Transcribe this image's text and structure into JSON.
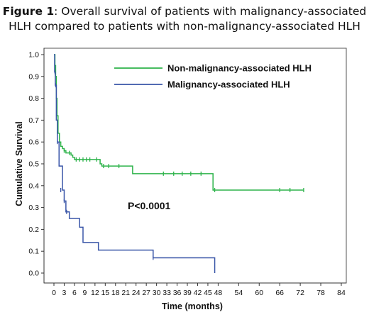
{
  "caption": {
    "label": "Figure 1",
    "text": ": Overall survival of patients with malignancy-associated HLH compared to patients with non-malignancy-associated HLH"
  },
  "chart_data": {
    "type": "line",
    "step": true,
    "xlabel": "Time (months)",
    "ylabel": "Cumulative Survival",
    "xlim": [
      -2,
      85
    ],
    "ylim": [
      -0.05,
      1.05
    ],
    "xticks": [
      0,
      3,
      6,
      9,
      12,
      15,
      18,
      21,
      24,
      27,
      30,
      33,
      36,
      39,
      42,
      45,
      48,
      54,
      60,
      66,
      72,
      78,
      84
    ],
    "yticks": [
      0.0,
      0.1,
      0.2,
      0.3,
      0.4,
      0.5,
      0.6,
      0.7,
      0.8,
      0.9,
      1.0
    ],
    "annotation": "P<0.0001",
    "legend_position": "top-center",
    "series": [
      {
        "name": "Non-malignancy-associated HLH",
        "color": "#2db34a",
        "steps": [
          [
            0,
            1.0
          ],
          [
            0.3,
            0.95
          ],
          [
            0.5,
            0.9
          ],
          [
            0.7,
            0.8
          ],
          [
            0.9,
            0.72
          ],
          [
            1.2,
            0.64
          ],
          [
            1.6,
            0.6
          ],
          [
            2.0,
            0.58
          ],
          [
            2.5,
            0.57
          ],
          [
            3.0,
            0.56
          ],
          [
            3.5,
            0.55
          ],
          [
            4.5,
            0.55
          ],
          [
            5.0,
            0.54
          ],
          [
            5.5,
            0.53
          ],
          [
            6.0,
            0.52
          ],
          [
            13.5,
            0.5
          ],
          [
            14.0,
            0.49
          ],
          [
            18.0,
            0.49
          ],
          [
            23.0,
            0.455
          ],
          [
            46.5,
            0.38
          ],
          [
            73.0,
            0.38
          ]
        ],
        "censored": [
          [
            1.0,
            0.64
          ],
          [
            3.0,
            0.56
          ],
          [
            4.5,
            0.55
          ],
          [
            6.5,
            0.52
          ],
          [
            7.5,
            0.52
          ],
          [
            8.5,
            0.52
          ],
          [
            9.5,
            0.52
          ],
          [
            10.5,
            0.52
          ],
          [
            12.5,
            0.52
          ],
          [
            14.5,
            0.49
          ],
          [
            16.0,
            0.49
          ],
          [
            19.0,
            0.49
          ],
          [
            32.0,
            0.455
          ],
          [
            35.0,
            0.455
          ],
          [
            37.5,
            0.455
          ],
          [
            40.0,
            0.455
          ],
          [
            43.0,
            0.455
          ],
          [
            47.0,
            0.38
          ],
          [
            66.0,
            0.38
          ],
          [
            69.0,
            0.38
          ],
          [
            73.0,
            0.38
          ]
        ]
      },
      {
        "name": "Malignancy-associated HLH",
        "color": "#3a56a8",
        "steps": [
          [
            0,
            1.0
          ],
          [
            0.2,
            0.92
          ],
          [
            0.4,
            0.86
          ],
          [
            0.7,
            0.7
          ],
          [
            1.0,
            0.6
          ],
          [
            1.5,
            0.49
          ],
          [
            2.5,
            0.38
          ],
          [
            3.0,
            0.33
          ],
          [
            3.5,
            0.28
          ],
          [
            4.5,
            0.25
          ],
          [
            7.5,
            0.21
          ],
          [
            8.5,
            0.14
          ],
          [
            13.0,
            0.105
          ],
          [
            29.0,
            0.07
          ],
          [
            47.0,
            0.0
          ]
        ],
        "censored": [
          [
            0.3,
            0.92
          ],
          [
            0.5,
            0.86
          ],
          [
            1.0,
            0.6
          ],
          [
            2.0,
            0.38
          ],
          [
            3.0,
            0.33
          ],
          [
            3.7,
            0.28
          ],
          [
            29.0,
            0.07
          ]
        ]
      }
    ]
  }
}
